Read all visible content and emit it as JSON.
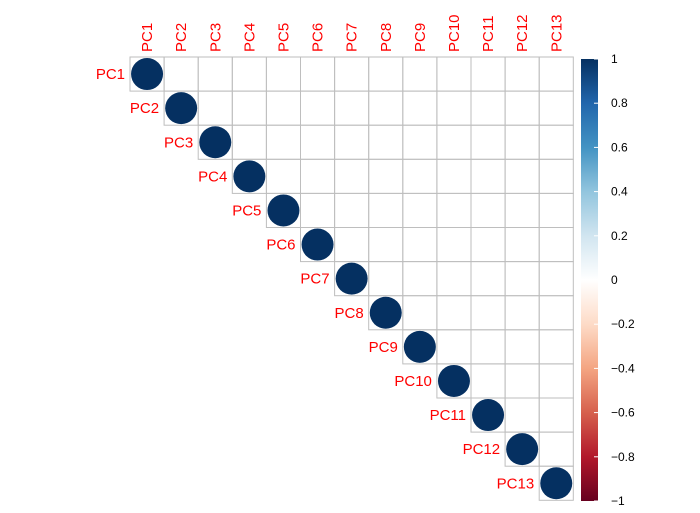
{
  "chart_data": {
    "type": "heatmap",
    "subtype": "correlation-matrix-upper-circle",
    "variables": [
      "PC1",
      "PC2",
      "PC3",
      "PC4",
      "PC5",
      "PC6",
      "PC7",
      "PC8",
      "PC9",
      "PC10",
      "PC11",
      "PC12",
      "PC13"
    ],
    "matrix_shown": "upper",
    "values": [
      {
        "row": "PC1",
        "col": "PC1",
        "value": 1
      },
      {
        "row": "PC2",
        "col": "PC2",
        "value": 1
      },
      {
        "row": "PC3",
        "col": "PC3",
        "value": 1
      },
      {
        "row": "PC4",
        "col": "PC4",
        "value": 1
      },
      {
        "row": "PC5",
        "col": "PC5",
        "value": 1
      },
      {
        "row": "PC6",
        "col": "PC6",
        "value": 1
      },
      {
        "row": "PC7",
        "col": "PC7",
        "value": 1
      },
      {
        "row": "PC8",
        "col": "PC8",
        "value": 1
      },
      {
        "row": "PC9",
        "col": "PC9",
        "value": 1
      },
      {
        "row": "PC10",
        "col": "PC10",
        "value": 1
      },
      {
        "row": "PC11",
        "col": "PC11",
        "value": 1
      },
      {
        "row": "PC12",
        "col": "PC12",
        "value": 1
      },
      {
        "row": "PC13",
        "col": "PC13",
        "value": 1
      }
    ],
    "off_diagonal_value": 0,
    "colorbar": {
      "range": [
        -1,
        1
      ],
      "ticks": [
        "1",
        "0.8",
        "0.6",
        "0.4",
        "0.2",
        "0",
        "−0.2",
        "−0.4",
        "−0.6",
        "−0.8",
        "−1"
      ],
      "tick_values": [
        1,
        0.8,
        0.6,
        0.4,
        0.2,
        0,
        -0.2,
        -0.4,
        -0.6,
        -0.8,
        -1
      ],
      "colors": [
        "#67001F",
        "#B2182B",
        "#D6604D",
        "#F4A582",
        "#FDDBC7",
        "#FFFFFF",
        "#D1E5F0",
        "#92C5DE",
        "#4393C3",
        "#2166AC",
        "#053061"
      ]
    },
    "label_color": "#FF0000",
    "grid_color": "#BEBEBE",
    "legend_position": "right",
    "grid": true
  }
}
